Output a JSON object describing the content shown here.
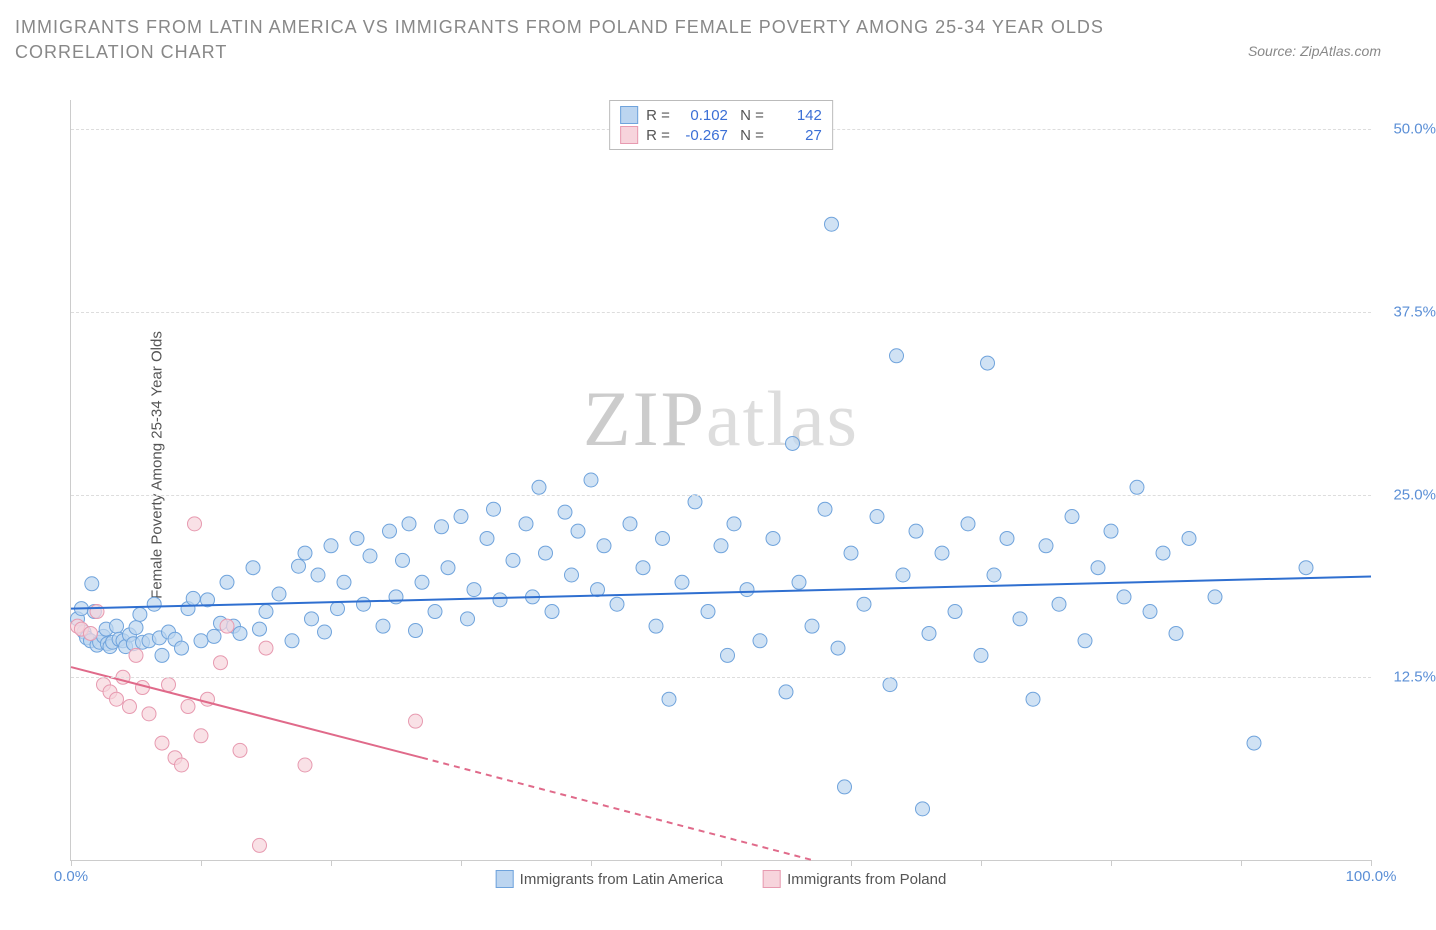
{
  "chart": {
    "type": "scatter-correlation",
    "title": "IMMIGRANTS FROM LATIN AMERICA VS IMMIGRANTS FROM POLAND FEMALE POVERTY AMONG 25-34 YEAR OLDS CORRELATION CHART",
    "source_label": "Source: ZipAtlas.com",
    "ylabel": "Female Poverty Among 25-34 Year Olds",
    "watermark_a": "ZIP",
    "watermark_b": "atlas",
    "background_color": "#ffffff",
    "grid_color": "#dddddd",
    "axis_color": "#cccccc",
    "xlim": [
      0,
      100
    ],
    "ylim": [
      0,
      52
    ],
    "x_ticks": [
      0,
      10,
      20,
      30,
      40,
      50,
      60,
      70,
      80,
      90,
      100
    ],
    "x_tick_labels": {
      "0": "0.0%",
      "100": "100.0%"
    },
    "y_ticks": [
      12.5,
      25.0,
      37.5,
      50.0
    ],
    "y_tick_fmt": [
      "12.5%",
      "25.0%",
      "37.5%",
      "50.0%"
    ],
    "marker_radius": 7,
    "marker_stroke_width": 1,
    "trend_stroke_width": 2,
    "series": [
      {
        "name": "Immigrants from Latin America",
        "fill": "#bcd5f0",
        "stroke": "#6fa3dc",
        "trend_color": "#2f6fd0",
        "R": "0.102",
        "N": "142",
        "trend": {
          "x1": 0,
          "y1": 17.2,
          "x2": 100,
          "y2": 19.4
        },
        "points": [
          [
            0.5,
            16.5
          ],
          [
            0.8,
            17.2
          ],
          [
            1.0,
            15.6
          ],
          [
            1.2,
            15.2
          ],
          [
            1.5,
            15.0
          ],
          [
            1.6,
            18.9
          ],
          [
            1.8,
            17.0
          ],
          [
            2.0,
            14.7
          ],
          [
            2.2,
            14.9
          ],
          [
            2.5,
            15.3
          ],
          [
            2.7,
            15.8
          ],
          [
            2.8,
            14.8
          ],
          [
            3.0,
            14.6
          ],
          [
            3.2,
            14.9
          ],
          [
            3.5,
            16.0
          ],
          [
            3.7,
            15.1
          ],
          [
            4.0,
            15.0
          ],
          [
            4.2,
            14.6
          ],
          [
            4.5,
            15.4
          ],
          [
            4.8,
            14.8
          ],
          [
            5.0,
            15.9
          ],
          [
            5.3,
            16.8
          ],
          [
            5.5,
            14.9
          ],
          [
            6.0,
            15.0
          ],
          [
            6.4,
            17.5
          ],
          [
            6.8,
            15.2
          ],
          [
            7.0,
            14.0
          ],
          [
            7.5,
            15.6
          ],
          [
            8.0,
            15.1
          ],
          [
            8.5,
            14.5
          ],
          [
            9.0,
            17.2
          ],
          [
            9.4,
            17.9
          ],
          [
            10.0,
            15.0
          ],
          [
            10.5,
            17.8
          ],
          [
            11.0,
            15.3
          ],
          [
            11.5,
            16.2
          ],
          [
            12.0,
            19.0
          ],
          [
            12.5,
            16.0
          ],
          [
            13.0,
            15.5
          ],
          [
            14.0,
            20.0
          ],
          [
            14.5,
            15.8
          ],
          [
            15.0,
            17.0
          ],
          [
            16.0,
            18.2
          ],
          [
            17.0,
            15.0
          ],
          [
            17.5,
            20.1
          ],
          [
            18.0,
            21.0
          ],
          [
            18.5,
            16.5
          ],
          [
            19.0,
            19.5
          ],
          [
            19.5,
            15.6
          ],
          [
            20.0,
            21.5
          ],
          [
            20.5,
            17.2
          ],
          [
            21.0,
            19.0
          ],
          [
            22.0,
            22.0
          ],
          [
            22.5,
            17.5
          ],
          [
            23.0,
            20.8
          ],
          [
            24.0,
            16.0
          ],
          [
            24.5,
            22.5
          ],
          [
            25.0,
            18.0
          ],
          [
            25.5,
            20.5
          ],
          [
            26.0,
            23.0
          ],
          [
            26.5,
            15.7
          ],
          [
            27.0,
            19.0
          ],
          [
            28.0,
            17.0
          ],
          [
            28.5,
            22.8
          ],
          [
            29.0,
            20.0
          ],
          [
            30.0,
            23.5
          ],
          [
            30.5,
            16.5
          ],
          [
            31.0,
            18.5
          ],
          [
            32.0,
            22.0
          ],
          [
            32.5,
            24.0
          ],
          [
            33.0,
            17.8
          ],
          [
            34.0,
            20.5
          ],
          [
            35.0,
            23.0
          ],
          [
            35.5,
            18.0
          ],
          [
            36.0,
            25.5
          ],
          [
            36.5,
            21.0
          ],
          [
            37.0,
            17.0
          ],
          [
            38.0,
            23.8
          ],
          [
            38.5,
            19.5
          ],
          [
            39.0,
            22.5
          ],
          [
            40.0,
            26.0
          ],
          [
            40.5,
            18.5
          ],
          [
            41.0,
            21.5
          ],
          [
            42.0,
            17.5
          ],
          [
            43.0,
            23.0
          ],
          [
            44.0,
            20.0
          ],
          [
            45.0,
            16.0
          ],
          [
            45.5,
            22.0
          ],
          [
            46.0,
            11.0
          ],
          [
            47.0,
            19.0
          ],
          [
            48.0,
            24.5
          ],
          [
            49.0,
            17.0
          ],
          [
            50.0,
            21.5
          ],
          [
            50.5,
            14.0
          ],
          [
            51.0,
            23.0
          ],
          [
            52.0,
            18.5
          ],
          [
            53.0,
            15.0
          ],
          [
            54.0,
            22.0
          ],
          [
            55.0,
            11.5
          ],
          [
            55.5,
            28.5
          ],
          [
            56.0,
            19.0
          ],
          [
            57.0,
            16.0
          ],
          [
            58.0,
            24.0
          ],
          [
            58.5,
            43.5
          ],
          [
            59.0,
            14.5
          ],
          [
            59.5,
            5.0
          ],
          [
            60.0,
            21.0
          ],
          [
            61.0,
            17.5
          ],
          [
            62.0,
            23.5
          ],
          [
            63.0,
            12.0
          ],
          [
            63.5,
            34.5
          ],
          [
            64.0,
            19.5
          ],
          [
            65.0,
            22.5
          ],
          [
            65.5,
            3.5
          ],
          [
            66.0,
            15.5
          ],
          [
            67.0,
            21.0
          ],
          [
            68.0,
            17.0
          ],
          [
            69.0,
            23.0
          ],
          [
            70.0,
            14.0
          ],
          [
            70.5,
            34.0
          ],
          [
            71.0,
            19.5
          ],
          [
            72.0,
            22.0
          ],
          [
            73.0,
            16.5
          ],
          [
            74.0,
            11.0
          ],
          [
            75.0,
            21.5
          ],
          [
            76.0,
            17.5
          ],
          [
            77.0,
            23.5
          ],
          [
            78.0,
            15.0
          ],
          [
            79.0,
            20.0
          ],
          [
            80.0,
            22.5
          ],
          [
            81.0,
            18.0
          ],
          [
            82.0,
            25.5
          ],
          [
            83.0,
            17.0
          ],
          [
            84.0,
            21.0
          ],
          [
            85.0,
            15.5
          ],
          [
            86.0,
            22.0
          ],
          [
            88.0,
            18.0
          ],
          [
            91.0,
            8.0
          ],
          [
            95.0,
            20.0
          ]
        ]
      },
      {
        "name": "Immigrants from Poland",
        "fill": "#f7d4dc",
        "stroke": "#e79ab0",
        "trend_color": "#e06a8a",
        "R": "-0.267",
        "N": "27",
        "trend_solid": {
          "x1": 0,
          "y1": 13.2,
          "x2": 27,
          "y2": 7.0
        },
        "trend_dashed": {
          "x1": 27,
          "y1": 7.0,
          "x2": 57,
          "y2": 0.0
        },
        "points": [
          [
            0.5,
            16.0
          ],
          [
            0.8,
            15.8
          ],
          [
            1.5,
            15.5
          ],
          [
            2.0,
            17.0
          ],
          [
            2.5,
            12.0
          ],
          [
            3.0,
            11.5
          ],
          [
            3.5,
            11.0
          ],
          [
            4.0,
            12.5
          ],
          [
            4.5,
            10.5
          ],
          [
            5.0,
            14.0
          ],
          [
            5.5,
            11.8
          ],
          [
            6.0,
            10.0
          ],
          [
            7.0,
            8.0
          ],
          [
            7.5,
            12.0
          ],
          [
            8.0,
            7.0
          ],
          [
            8.5,
            6.5
          ],
          [
            9.0,
            10.5
          ],
          [
            9.5,
            23.0
          ],
          [
            10.0,
            8.5
          ],
          [
            10.5,
            11.0
          ],
          [
            11.5,
            13.5
          ],
          [
            12.0,
            16.0
          ],
          [
            13.0,
            7.5
          ],
          [
            14.5,
            1.0
          ],
          [
            15.0,
            14.5
          ],
          [
            18.0,
            6.5
          ],
          [
            26.5,
            9.5
          ]
        ]
      }
    ]
  }
}
